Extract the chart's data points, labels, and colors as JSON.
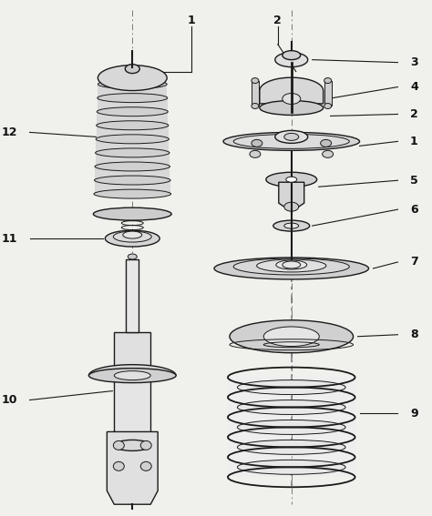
{
  "background_color": "#f0f0ec",
  "line_color": "#1a1a1a",
  "label_color": "#111111",
  "fig_width": 4.74,
  "fig_height": 5.67,
  "dpi": 100
}
